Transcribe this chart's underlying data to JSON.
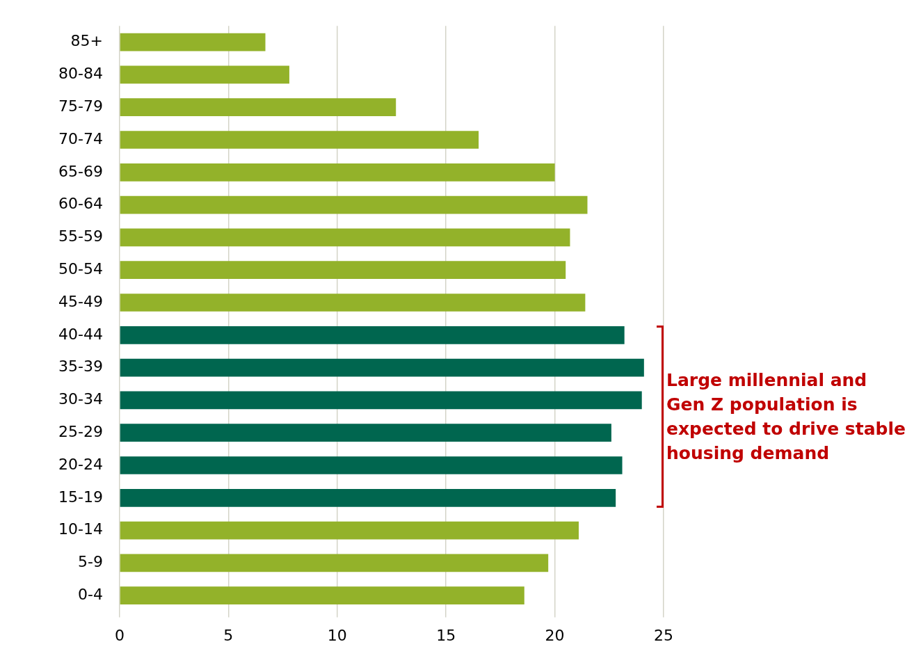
{
  "chart_data": {
    "type": "bar",
    "orientation": "horizontal",
    "categories": [
      "85+",
      "80-84",
      "75-79",
      "70-74",
      "65-69",
      "60-64",
      "55-59",
      "50-54",
      "45-49",
      "40-44",
      "35-39",
      "30-34",
      "25-29",
      "20-24",
      "15-19",
      "10-14",
      "5-9",
      "0-4"
    ],
    "values": [
      6.7,
      7.8,
      12.7,
      16.5,
      20.0,
      21.5,
      20.7,
      20.5,
      21.4,
      23.2,
      24.1,
      24.0,
      22.6,
      23.1,
      22.8,
      21.1,
      19.7,
      18.6
    ],
    "colors": [
      "#93b22a",
      "#93b22a",
      "#93b22a",
      "#93b22a",
      "#93b22a",
      "#93b22a",
      "#93b22a",
      "#93b22a",
      "#93b22a",
      "#00664f",
      "#00664f",
      "#00664f",
      "#00664f",
      "#00664f",
      "#00664f",
      "#93b22a",
      "#93b22a",
      "#93b22a"
    ],
    "xlim": [
      0,
      25
    ],
    "xticks": [
      0,
      5,
      10,
      15,
      20,
      25
    ],
    "grid": "x",
    "legend": false,
    "annotations": [
      "Large millennial and Gen Z population is expected to drive stable housing demand"
    ]
  }
}
